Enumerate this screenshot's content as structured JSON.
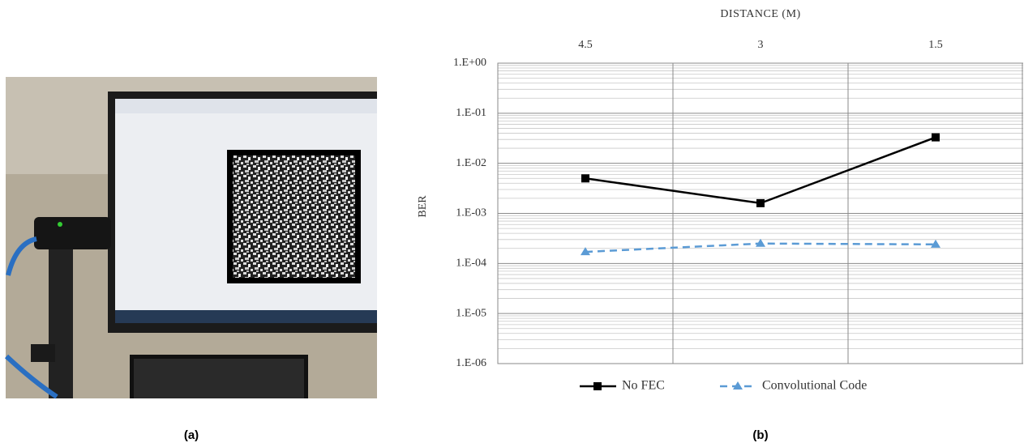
{
  "chart_data": {
    "type": "line",
    "xlabel": "DISTANCE (M)",
    "ylabel": "BER",
    "categories": [
      "4.5",
      "3",
      "1.5"
    ],
    "series": [
      {
        "name": "No FEC",
        "color": "#000000",
        "marker": "square",
        "linestyle": "solid",
        "values": [
          0.005,
          0.0016,
          0.033
        ]
      },
      {
        "name": "Convolutional Code",
        "color": "#5b9bd5",
        "marker": "triangle",
        "linestyle": "dashed",
        "values": [
          0.00017,
          0.00025,
          0.00024
        ]
      }
    ],
    "log_y": true,
    "ylim": [
      1e-06,
      1
    ],
    "yticks": [
      {
        "value": 1,
        "label": "1.E+00"
      },
      {
        "value": 0.1,
        "label": "1.E-01"
      },
      {
        "value": 0.01,
        "label": "1.E-02"
      },
      {
        "value": 0.001,
        "label": "1.E-03"
      },
      {
        "value": 0.0001,
        "label": "1.E-04"
      },
      {
        "value": 1e-05,
        "label": "1.E-05"
      },
      {
        "value": 1e-06,
        "label": "1.E-06"
      }
    ],
    "grid": true,
    "legend": "bottom"
  },
  "captions": [
    "(a)",
    "(b)"
  ]
}
